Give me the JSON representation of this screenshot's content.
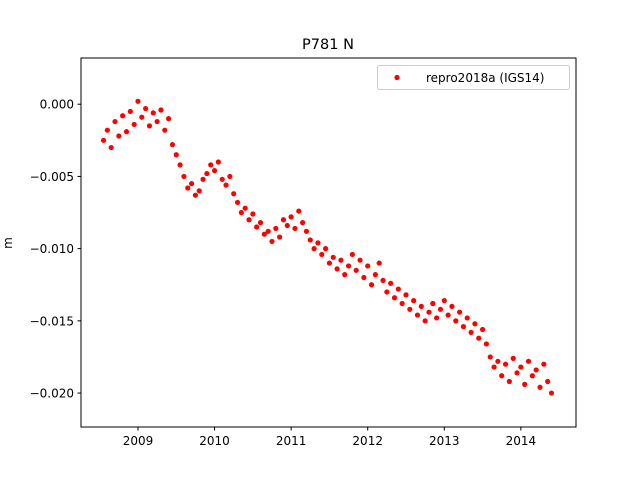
{
  "chart_data": {
    "type": "scatter",
    "title": "P781 N",
    "xlabel": "",
    "ylabel": "m",
    "xlim": [
      2008.256,
      2014.72
    ],
    "ylim": [
      -0.02235,
      0.0032
    ],
    "xticks": [
      2009,
      2010,
      2011,
      2012,
      2013,
      2014
    ],
    "xtick_labels": [
      "2009",
      "2010",
      "2011",
      "2012",
      "2013",
      "2014"
    ],
    "yticks": [
      0.0,
      -0.005,
      -0.01,
      -0.015,
      -0.02
    ],
    "ytick_labels": [
      "0.000",
      "−0.005",
      "−0.010",
      "−0.015",
      "−0.020"
    ],
    "grid": false,
    "legend_position": "top-right",
    "series": [
      {
        "name": "repro2018a (IGS14)",
        "color": "#ff0000",
        "marker": "circle",
        "x": [
          2008.55,
          2008.6,
          2008.65,
          2008.7,
          2008.75,
          2008.8,
          2008.85,
          2008.9,
          2008.95,
          2009.0,
          2009.05,
          2009.1,
          2009.15,
          2009.2,
          2009.25,
          2009.3,
          2009.35,
          2009.4,
          2009.45,
          2009.5,
          2009.55,
          2009.6,
          2009.65,
          2009.7,
          2009.75,
          2009.8,
          2009.85,
          2009.9,
          2009.95,
          2010.0,
          2010.05,
          2010.1,
          2010.15,
          2010.2,
          2010.25,
          2010.3,
          2010.35,
          2010.4,
          2010.45,
          2010.5,
          2010.55,
          2010.6,
          2010.65,
          2010.7,
          2010.75,
          2010.8,
          2010.85,
          2010.9,
          2010.95,
          2011.0,
          2011.05,
          2011.1,
          2011.15,
          2011.2,
          2011.25,
          2011.3,
          2011.35,
          2011.4,
          2011.45,
          2011.5,
          2011.55,
          2011.6,
          2011.65,
          2011.7,
          2011.75,
          2011.8,
          2011.85,
          2011.9,
          2011.95,
          2012.0,
          2012.05,
          2012.1,
          2012.15,
          2012.2,
          2012.25,
          2012.3,
          2012.35,
          2012.4,
          2012.45,
          2012.5,
          2012.55,
          2012.6,
          2012.65,
          2012.7,
          2012.75,
          2012.8,
          2012.85,
          2012.9,
          2012.95,
          2013.0,
          2013.05,
          2013.1,
          2013.15,
          2013.2,
          2013.25,
          2013.3,
          2013.35,
          2013.4,
          2013.45,
          2013.5,
          2013.55,
          2013.6,
          2013.65,
          2013.7,
          2013.75,
          2013.8,
          2013.85,
          2013.9,
          2013.95,
          2014.0,
          2014.05,
          2014.1,
          2014.15,
          2014.2,
          2014.25,
          2014.3,
          2014.35,
          2014.4
        ],
        "y": [
          -0.0025,
          -0.0018,
          -0.003,
          -0.0012,
          -0.0022,
          -0.0008,
          -0.0019,
          -0.0005,
          -0.0014,
          0.0002,
          -0.0009,
          -0.0003,
          -0.0015,
          -0.0006,
          -0.0012,
          -0.0004,
          -0.0018,
          -0.001,
          -0.0028,
          -0.0035,
          -0.0042,
          -0.005,
          -0.0058,
          -0.0055,
          -0.0063,
          -0.006,
          -0.0052,
          -0.0048,
          -0.0042,
          -0.0046,
          -0.004,
          -0.0052,
          -0.0056,
          -0.005,
          -0.0062,
          -0.0068,
          -0.0075,
          -0.0072,
          -0.008,
          -0.0076,
          -0.0085,
          -0.0082,
          -0.009,
          -0.0088,
          -0.0095,
          -0.0086,
          -0.0092,
          -0.008,
          -0.0084,
          -0.0078,
          -0.0086,
          -0.0074,
          -0.0082,
          -0.0088,
          -0.0094,
          -0.01,
          -0.0096,
          -0.0104,
          -0.01,
          -0.011,
          -0.0106,
          -0.0114,
          -0.0108,
          -0.0118,
          -0.0112,
          -0.0104,
          -0.0115,
          -0.0108,
          -0.012,
          -0.0112,
          -0.0125,
          -0.0118,
          -0.011,
          -0.0122,
          -0.013,
          -0.0124,
          -0.0134,
          -0.0128,
          -0.0138,
          -0.0132,
          -0.0142,
          -0.0136,
          -0.0146,
          -0.014,
          -0.015,
          -0.0144,
          -0.0138,
          -0.0148,
          -0.0142,
          -0.0136,
          -0.0146,
          -0.014,
          -0.015,
          -0.0144,
          -0.0154,
          -0.0148,
          -0.0158,
          -0.0152,
          -0.0162,
          -0.0156,
          -0.0166,
          -0.0175,
          -0.0182,
          -0.0178,
          -0.0188,
          -0.018,
          -0.0192,
          -0.0176,
          -0.0186,
          -0.0182,
          -0.0194,
          -0.0178,
          -0.0188,
          -0.0184,
          -0.0196,
          -0.018,
          -0.0192,
          -0.02
        ]
      }
    ]
  }
}
